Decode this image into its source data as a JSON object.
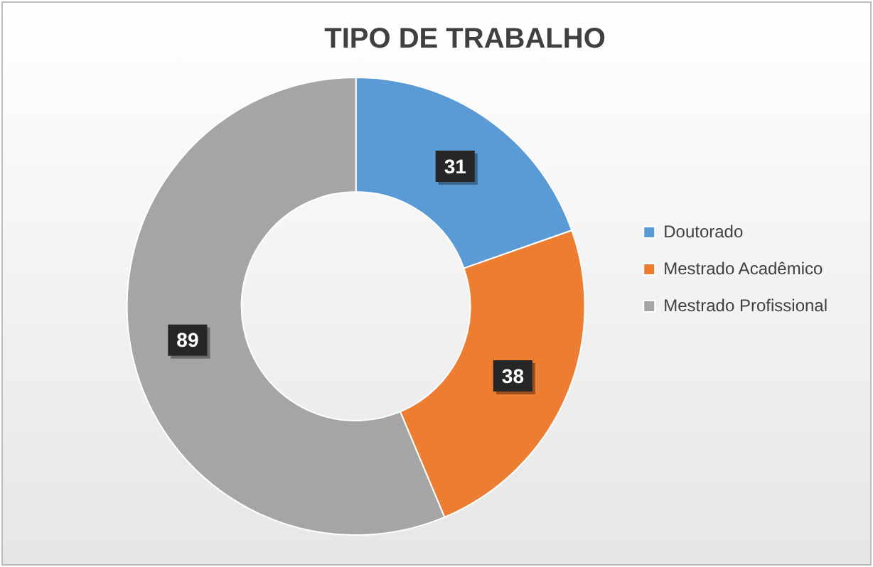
{
  "chart_data": {
    "type": "donut",
    "title": "TIPO DE TRABALHO",
    "categories": [
      "Doutorado",
      "Mestrado Acadêmico",
      "Mestrado Profissional"
    ],
    "values": [
      31,
      38,
      89
    ],
    "colors": [
      "#5b9bd5",
      "#ed7d31",
      "#a5a5a5"
    ],
    "data_labels": true,
    "legend": "right"
  }
}
